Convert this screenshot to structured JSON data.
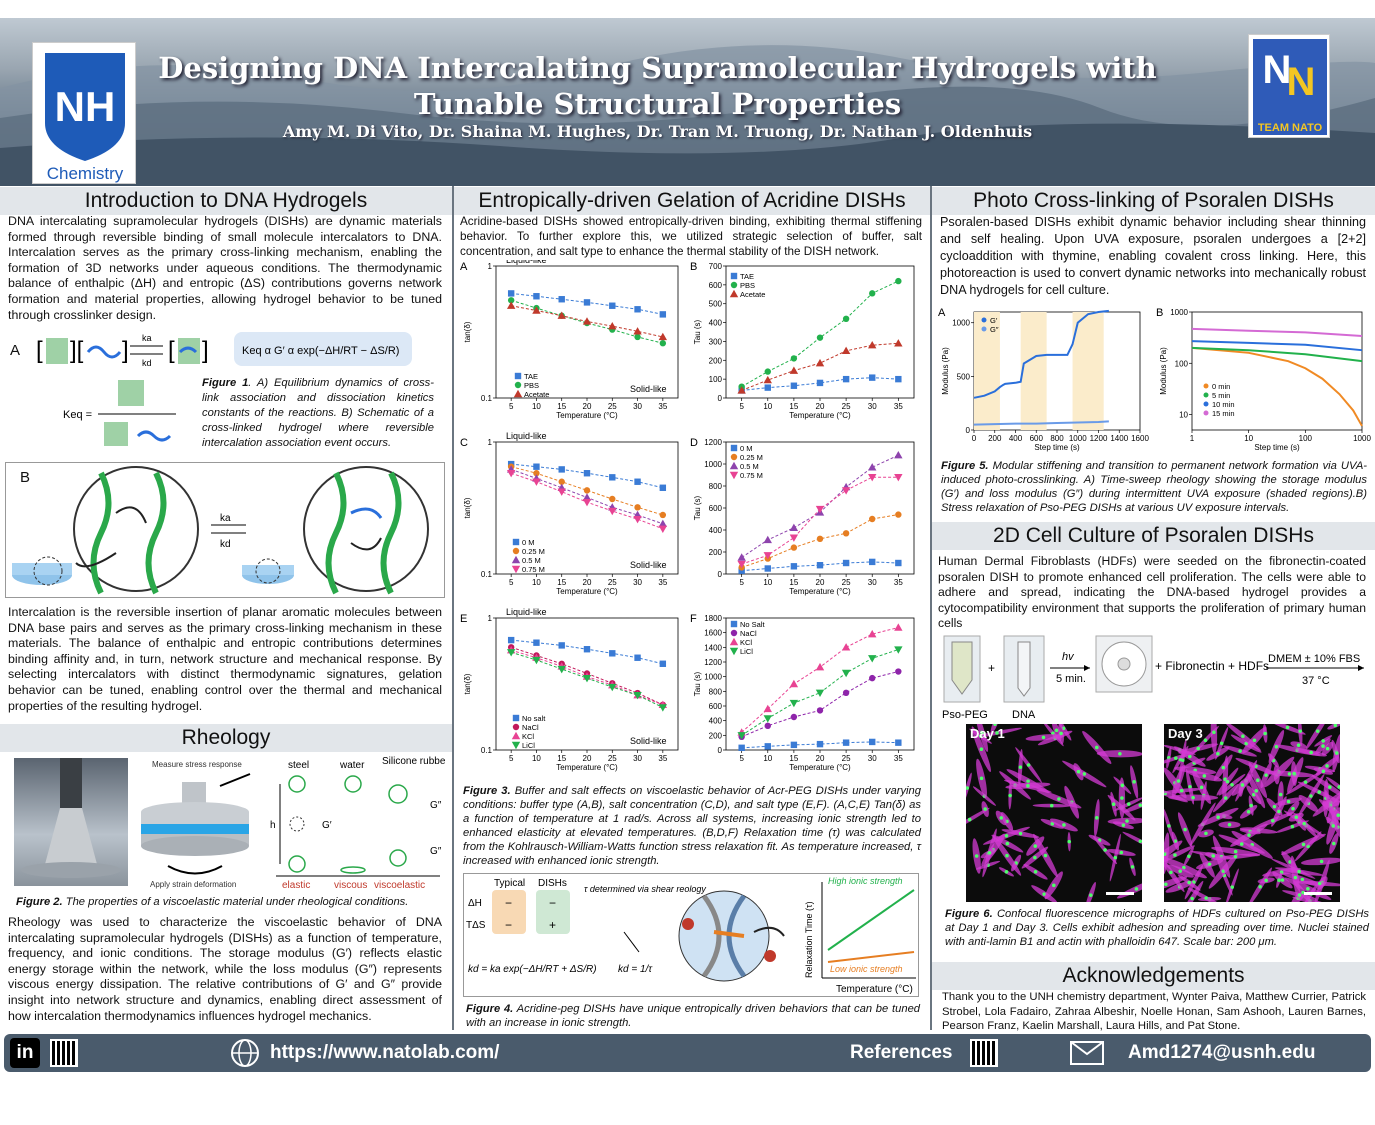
{
  "header": {
    "title_line1": "Designing DNA Intercalating Supramolecular Hydrogels with",
    "title_line2": "Tunable Structural Properties",
    "authors": "Amy M. Di Vito, Dr. Shaina M. Hughes, Dr. Tran M. Truong, Dr. Nathan J. Oldenhuis",
    "unh_logo_text": "NH",
    "unh_logo_sub": "Chemistry",
    "team_logo_text": "TEAM NATO"
  },
  "intro": {
    "heading": "Introduction to DNA Hydrogels",
    "para1": "DNA intercalating supramolecular hydrogels (DISHs) are dynamic materials formed through reversible binding of small molecule intercalators to DNA. Intercalation serves as the primary cross-linking mechanism, enabling the formation of 3D networks under aqueous conditions. The thermodynamic balance of enthalpic (ΔH) and entropic (ΔS) contributions governs network formation and material properties, allowing hydrogel behavior to be tuned through crosslinker design.",
    "label_a": "A",
    "label_b": "B",
    "ka": "ka",
    "kd": "kd",
    "keq": "Keq =",
    "keq_expr": "Keq α G′ α  exp(−ΔH/RT − ΔS/R)",
    "fig1_caption_bold": "Figure 1",
    "fig1_caption": ". A) Equilibrium dynamics of cross-link association and dissociation kinetics constants of the reactions. B) Schematic of a cross-linked hydrogel where reversible intercalation association event occurs.",
    "para2": "Intercalation is the reversible insertion of planar aromatic molecules between DNA base pairs and serves as the primary cross-linking mechanism in these materials. The balance of enthalpic and entropic contributions determines binding affinity and, in turn, network structure and mechanical response. By selecting intercalators with distinct thermodynamic signatures, gelation behavior can be tuned, enabling control over the thermal and mechanical properties of the resulting hydrogel."
  },
  "rheology": {
    "heading": "Rheology",
    "measure": "Measure stress response",
    "apply": "Apply strain deformation",
    "steel": "steel",
    "water": "water",
    "silicone": "Silicone rubber",
    "h": "h",
    "gprime": "G′",
    "gdouble": "G″",
    "elastic": "elastic",
    "viscous": "viscous",
    "viscoelastic": "viscoelastic",
    "fig2_bold": "Figure 2.",
    "fig2": " The properties of a viscoelastic material under rheological conditions.",
    "para": "Rheology was used to characterize the viscoelastic behavior of DNA intercalating supramolecular hydrogels (DISHs) as a function of temperature, frequency, and ionic conditions. The storage modulus (G′) reflects elastic energy storage within the network, while the loss modulus (G″) represents viscous energy dissipation. The relative contributions of G′ and G″ provide insight into network structure and dynamics, enabling direct assessment of how intercalation thermodynamics influences hydrogel mechanics."
  },
  "acridine": {
    "heading": "Entropically-driven Gelation of Acridine DISHs",
    "para": "Acridine-based DISHs showed entropically-driven binding, exhibiting thermal stiffening behavior. To further explore this, we utilized strategic selection of buffer, salt concentration, and salt type to enhance the thermal stability of the DISH network.",
    "fig3_bold": "Figure 3.",
    "fig3": " Buffer and salt effects on viscoelastic behavior of Acr-PEG DISHs under varying conditions: buffer type (A,B), salt concentration (C,D), and salt type (E,F). (A,C,E) Tan(δ) as a function of temperature at 1 rad/s. Across all systems, increasing ionic strength led to enhanced elasticity at elevated temperatures. (B,D,F) Relaxation time (τ) was calculated from the Kohlrausch-William-Watts function stress relaxation fit. As temperature increased, τ increased with enhanced ionic strength.",
    "fig4_bold": "Figure 4.",
    "fig4": " Acridine-peg DISHs have unique entropically driven behaviors that can be tuned with an increase in ionic strength.",
    "fig4_typical": "Typical",
    "fig4_dishs": "DISHs",
    "fig4_dh": "ΔH",
    "fig4_tds": "TΔS",
    "fig4_minus": "−",
    "fig4_plus": "+",
    "fig4_tau_note": "τ determined via shear reology",
    "fig4_kd_eq": "kd = ka exp(−ΔH/RT + ΔS/R)",
    "fig4_kd_tau": "kd = 1/τ",
    "fig4_ylabel": "Relaxation Time (τ)",
    "fig4_xlabel": "Temperature (°C)",
    "fig4_high": "High ionic strength",
    "fig4_low": "Low ionic strength",
    "liquid_like": "Liquid-like",
    "solid_like": "Solid-like"
  },
  "chart_data": [
    {
      "id": "A",
      "type": "line",
      "xlabel": "Temperature (°C)",
      "ylabel": "tan(δ)",
      "yscale": "log",
      "ylim": [
        0.1,
        1
      ],
      "xlim": [
        2,
        38
      ],
      "x": [
        5,
        10,
        15,
        20,
        25,
        30,
        35
      ],
      "series": [
        {
          "name": "TAE",
          "color": "#3a7bd5",
          "marker": "square",
          "values": [
            0.62,
            0.59,
            0.56,
            0.53,
            0.5,
            0.47,
            0.43
          ]
        },
        {
          "name": "PBS",
          "color": "#22b14c",
          "marker": "circle",
          "values": [
            0.55,
            0.48,
            0.42,
            0.37,
            0.33,
            0.29,
            0.26
          ]
        },
        {
          "name": "Acetate",
          "color": "#c0392b",
          "marker": "triangle",
          "values": [
            0.5,
            0.46,
            0.42,
            0.38,
            0.35,
            0.32,
            0.29
          ]
        }
      ]
    },
    {
      "id": "B",
      "type": "line",
      "xlabel": "Temperature (°C)",
      "ylabel": "Tau (s)",
      "ylim": [
        0,
        700
      ],
      "xlim": [
        2,
        38
      ],
      "x": [
        5,
        10,
        15,
        20,
        25,
        30,
        35
      ],
      "series": [
        {
          "name": "TAE",
          "color": "#3a7bd5",
          "marker": "square",
          "values": [
            40,
            55,
            65,
            80,
            100,
            108,
            100
          ]
        },
        {
          "name": "PBS",
          "color": "#22b14c",
          "marker": "circle",
          "values": [
            60,
            140,
            210,
            320,
            420,
            555,
            620
          ]
        },
        {
          "name": "Acetate",
          "color": "#c0392b",
          "marker": "triangle",
          "values": [
            40,
            95,
            145,
            185,
            250,
            280,
            290
          ]
        }
      ]
    },
    {
      "id": "C",
      "type": "line",
      "xlabel": "Temperature (°C)",
      "ylabel": "tan(δ)",
      "yscale": "log",
      "ylim": [
        0.1,
        1
      ],
      "xlim": [
        2,
        38
      ],
      "x": [
        5,
        10,
        15,
        20,
        25,
        30,
        35
      ],
      "series": [
        {
          "name": "0 M",
          "color": "#3a7bd5",
          "marker": "square",
          "values": [
            0.68,
            0.65,
            0.62,
            0.58,
            0.54,
            0.5,
            0.45
          ]
        },
        {
          "name": "0.25 M",
          "color": "#e67e22",
          "marker": "circle",
          "values": [
            0.65,
            0.58,
            0.5,
            0.43,
            0.37,
            0.32,
            0.28
          ]
        },
        {
          "name": "0.5 M",
          "color": "#8e44ad",
          "marker": "triangle",
          "values": [
            0.62,
            0.53,
            0.45,
            0.38,
            0.32,
            0.28,
            0.24
          ]
        },
        {
          "name": "0.75 M",
          "color": "#e84393",
          "marker": "triangle-down",
          "values": [
            0.58,
            0.5,
            0.42,
            0.35,
            0.3,
            0.26,
            0.22
          ]
        }
      ]
    },
    {
      "id": "D",
      "type": "line",
      "xlabel": "Temperature (°C)",
      "ylabel": "Tau (s)",
      "ylim": [
        0,
        1200
      ],
      "xlim": [
        2,
        38
      ],
      "x": [
        5,
        10,
        15,
        20,
        25,
        30,
        35
      ],
      "series": [
        {
          "name": "0 M",
          "color": "#3a7bd5",
          "marker": "square",
          "values": [
            30,
            50,
            70,
            80,
            100,
            110,
            100
          ]
        },
        {
          "name": "0.25 M",
          "color": "#e67e22",
          "marker": "circle",
          "values": [
            60,
            140,
            240,
            320,
            370,
            500,
            540
          ]
        },
        {
          "name": "0.5 M",
          "color": "#8e44ad",
          "marker": "triangle",
          "values": [
            150,
            310,
            420,
            560,
            790,
            970,
            1080
          ]
        },
        {
          "name": "0.75 M",
          "color": "#e84393",
          "marker": "triangle-down",
          "values": [
            90,
            170,
            330,
            590,
            760,
            880,
            880
          ]
        }
      ]
    },
    {
      "id": "E",
      "type": "line",
      "xlabel": "Temperature (°C)",
      "ylabel": "tan(δ)",
      "yscale": "log",
      "ylim": [
        0.1,
        1
      ],
      "xlim": [
        2,
        38
      ],
      "x": [
        5,
        10,
        15,
        20,
        25,
        30,
        35
      ],
      "series": [
        {
          "name": "No salt",
          "color": "#3a7bd5",
          "marker": "square",
          "values": [
            0.68,
            0.65,
            0.62,
            0.58,
            0.54,
            0.5,
            0.45
          ]
        },
        {
          "name": "NaCl",
          "color": "#c2185b",
          "marker": "circle",
          "values": [
            0.6,
            0.52,
            0.45,
            0.38,
            0.32,
            0.27,
            0.22
          ]
        },
        {
          "name": "KCl",
          "color": "#e84393",
          "marker": "triangle",
          "values": [
            0.57,
            0.5,
            0.43,
            0.36,
            0.31,
            0.26,
            0.22
          ]
        },
        {
          "name": "LiCl",
          "color": "#22b14c",
          "marker": "triangle-down",
          "values": [
            0.55,
            0.48,
            0.41,
            0.35,
            0.3,
            0.26,
            0.21
          ]
        }
      ]
    },
    {
      "id": "F",
      "type": "line",
      "xlabel": "Temperature (°C)",
      "ylabel": "Tau (s)",
      "ylim": [
        0,
        1800
      ],
      "xlim": [
        2,
        38
      ],
      "x": [
        5,
        10,
        15,
        20,
        25,
        30,
        35
      ],
      "series": [
        {
          "name": "No Salt",
          "color": "#3a7bd5",
          "marker": "square",
          "values": [
            30,
            50,
            70,
            80,
            100,
            110,
            100
          ]
        },
        {
          "name": "NaCl",
          "color": "#8e24aa",
          "marker": "circle",
          "values": [
            180,
            330,
            450,
            540,
            780,
            980,
            1070
          ]
        },
        {
          "name": "KCl",
          "color": "#e84393",
          "marker": "triangle",
          "values": [
            240,
            560,
            900,
            1130,
            1400,
            1580,
            1670
          ]
        },
        {
          "name": "LiCl",
          "color": "#22b14c",
          "marker": "triangle-down",
          "values": [
            200,
            430,
            640,
            780,
            1050,
            1250,
            1370
          ]
        }
      ]
    },
    {
      "id": "5A",
      "type": "line",
      "xlabel": "Step time (s)",
      "ylabel": "Modulus (Pa)",
      "ylim": [
        0,
        1100
      ],
      "xlim": [
        0,
        1600
      ],
      "series": [
        {
          "name": "G′",
          "color": "#2a6fdb",
          "x": [
            0,
            100,
            200,
            250,
            280,
            300,
            400,
            450,
            480,
            600,
            700,
            800,
            900,
            950,
            1000,
            1100,
            1200,
            1300
          ],
          "values": [
            300,
            320,
            360,
            400,
            420,
            430,
            440,
            450,
            620,
            690,
            700,
            700,
            700,
            800,
            1000,
            1080,
            1100,
            1110
          ]
        },
        {
          "name": "G″",
          "color": "#6a9be8",
          "x": [
            0,
            200,
            400,
            600,
            800,
            1000,
            1200,
            1300
          ],
          "values": [
            50,
            55,
            60,
            60,
            65,
            70,
            75,
            80
          ]
        }
      ]
    },
    {
      "id": "5B",
      "type": "line",
      "xlabel": "Step time (s)",
      "ylabel": "Modulus (Pa)",
      "yscale": "log",
      "xscale": "log",
      "ylim": [
        5,
        1000
      ],
      "xlim": [
        1,
        1000
      ],
      "series": [
        {
          "name": "0 min",
          "color": "#f08a24",
          "x": [
            1,
            10,
            50,
            100,
            200,
            400,
            700,
            1000
          ],
          "values": [
            200,
            160,
            110,
            80,
            50,
            25,
            12,
            6
          ]
        },
        {
          "name": "5 min",
          "color": "#22b14c",
          "x": [
            1,
            10,
            100,
            1000
          ],
          "values": [
            200,
            180,
            150,
            110
          ]
        },
        {
          "name": "10 min",
          "color": "#2a6fdb",
          "x": [
            1,
            10,
            100,
            1000
          ],
          "values": [
            270,
            250,
            230,
            180
          ]
        },
        {
          "name": "15 min",
          "color": "#d46ad4",
          "x": [
            1,
            10,
            100,
            1000
          ],
          "values": [
            470,
            430,
            400,
            340
          ]
        }
      ]
    }
  ],
  "psoralen": {
    "heading": "Photo Cross-linking of Psoralen DISHs",
    "para": "Psoralen-based DISHs exhibit dynamic behavior including shear thinning and self healing. Upon UVA exposure, psoralen undergoes a [2+2] cycloaddition with thymine, enabling covalent cross linking. Here, this photoreaction is used to convert dynamic networks into mechanically robust DNA hydrogels for cell culture.",
    "fig5_bold": "Figure 5.",
    "fig5": " Modular stiffening and transition to permanent network formation via UVA-induced photo-crosslinking. A) Time-sweep rheology showing the storage modulus (G′) and loss modulus (G″) during intermittent UVA exposure (shaded regions).B) Stress relaxation of Pso-PEG DISHs at various UV exposure intervals."
  },
  "cell": {
    "heading": "2D Cell Culture of Psoralen DISHs",
    "para": "Human Dermal Fibroblasts (HDFs) were seeded on the fibronectin-coated psoralen DISH to promote enhanced cell proliferation. The cells were able to adhere and spread, indicating the DNA-based hydrogel provides a cytocompatibility environment that supports the proliferation of primary human cells",
    "pso_peg": "Pso-PEG",
    "dna": "DNA",
    "plus": "+",
    "hv": "hv",
    "five_min": "5 min.",
    "fibro": "+ Fibronectin + HDFs",
    "dmem": "DMEM ± 10% FBS",
    "temp": "37 °C",
    "day1": "Day 1",
    "day3": "Day 3",
    "fig6_bold": "Figure 6.",
    "fig6": " Confocal fluorescence micrographs of HDFs cultured on Pso-PEG DISHs at Day 1 and Day 3. Cells exhibit adhesion and spreading over time. Nuclei stained with anti-lamin B1 and actin with phalloidin 647. Scale bar: 200 μm."
  },
  "ack": {
    "heading": "Acknowledgements",
    "para": "Thank you to the UNH chemistry department, Wynter Paiva, Matthew Currier, Patrick Strobel, Lola Fadairo, Zahraa Albeshir, Noelle Honan, Sam Ashooh, Lauren Barnes, Pearson Franz, Kaelin Marshall, Laura Hills, and Pat Stone."
  },
  "footer": {
    "linkedin": "in",
    "url": "https://www.natolab.com/",
    "references": "References",
    "email": "Amd1274@usnh.edu"
  }
}
